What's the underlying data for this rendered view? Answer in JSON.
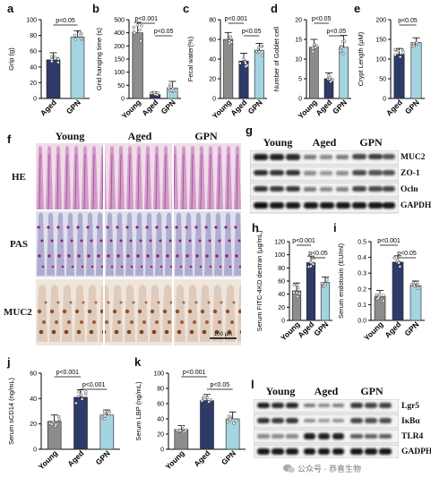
{
  "panels": {
    "a": "a",
    "b": "b",
    "c": "c",
    "d": "d",
    "e": "e",
    "f": "f",
    "g": "g",
    "h": "h",
    "i": "i",
    "j": "j",
    "k": "k",
    "l": "l"
  },
  "colors": {
    "young": "#8c8c8c",
    "aged": "#2e3a67",
    "gpn": "#a3d4e0"
  },
  "histology": {
    "columns": [
      "Young",
      "Aged",
      "GPN"
    ],
    "rows": [
      "HE",
      "PAS",
      "MUC2"
    ],
    "scale_bar": "100 μm"
  },
  "western_g": {
    "groups": [
      "Young",
      "Aged",
      "GPN"
    ],
    "bands": [
      "MUC2",
      "ZO-1",
      "Ocln",
      "GAPDH"
    ]
  },
  "western_l": {
    "groups": [
      "Young",
      "Aged",
      "GPN"
    ],
    "bands": [
      "Lgr5",
      "IκBα",
      "TLR4",
      "GADPH"
    ]
  },
  "watermark": "公众号 · 恭喜生物",
  "chart_data": [
    {
      "id": "a",
      "type": "bar",
      "categories": [
        "Aged",
        "GPN"
      ],
      "values": [
        49,
        78
      ],
      "errors": [
        9,
        8
      ],
      "ylabel": "Grip (g)",
      "ylim": [
        0,
        100
      ],
      "yticks": [
        "0",
        "20",
        "40",
        "60",
        "80",
        "100"
      ],
      "comparisons": [
        {
          "from": 0,
          "to": 1,
          "label": "p<0.05"
        }
      ]
    },
    {
      "id": "b",
      "type": "bar",
      "categories": [
        "Young",
        "Aged",
        "GPN"
      ],
      "values": [
        400,
        15,
        40
      ],
      "errors": [
        40,
        10,
        25
      ],
      "ylabel": "Grid hanging time (s)",
      "ylim": [
        0,
        500
      ],
      "yticks": [
        "0",
        "50",
        "100",
        "150",
        "200",
        "400",
        "500"
      ],
      "comparisons": [
        {
          "from": 0,
          "to": 1,
          "label": "p<0.001"
        },
        {
          "from": 1,
          "to": 2,
          "label": "p<0.05"
        }
      ]
    },
    {
      "id": "c",
      "type": "bar",
      "categories": [
        "Young",
        "Aged",
        "GPN"
      ],
      "values": [
        60,
        38,
        49
      ],
      "errors": [
        7,
        8,
        7
      ],
      "ylabel": "Fecal water(%)",
      "ylim": [
        0,
        80
      ],
      "yticks": [
        "0",
        "20",
        "40",
        "60",
        "80"
      ],
      "comparisons": [
        {
          "from": 0,
          "to": 1,
          "label": "p<0.001"
        },
        {
          "from": 1,
          "to": 2,
          "label": "p<0.05"
        }
      ]
    },
    {
      "id": "d",
      "type": "bar",
      "categories": [
        "Young",
        "Aged",
        "GPN"
      ],
      "values": [
        13,
        5,
        13
      ],
      "errors": [
        2,
        1.5,
        3
      ],
      "ylabel": "Number of Goblet cell",
      "ylim": [
        0,
        20
      ],
      "yticks": [
        "0",
        "5",
        "10",
        "15",
        "20"
      ],
      "comparisons": [
        {
          "from": 0,
          "to": 1,
          "label": "p<0.05"
        },
        {
          "from": 1,
          "to": 2,
          "label": "p<0.05"
        }
      ]
    },
    {
      "id": "e",
      "type": "bar",
      "categories": [
        "Aged",
        "GPN"
      ],
      "values": [
        112,
        142
      ],
      "errors": [
        15,
        12
      ],
      "ylabel": "Crypt Length (μM)",
      "ylim": [
        0,
        200
      ],
      "yticks": [
        "0",
        "50",
        "100",
        "150",
        "200"
      ],
      "comparisons": [
        {
          "from": 0,
          "to": 1,
          "label": "p<0.05"
        }
      ]
    },
    {
      "id": "h",
      "type": "bar",
      "categories": [
        "Young",
        "Aged",
        "GPN"
      ],
      "values": [
        45,
        88,
        58
      ],
      "errors": [
        12,
        10,
        8
      ],
      "ylabel": "Serum FITC-4KD dextran (μg/mL)",
      "ylim": [
        0,
        120
      ],
      "yticks": [
        "0",
        "20",
        "40",
        "60",
        "80",
        "100",
        "120"
      ],
      "comparisons": [
        {
          "from": 0,
          "to": 1,
          "label": "p<0.001"
        },
        {
          "from": 1,
          "to": 2,
          "label": "p<0.05"
        }
      ]
    },
    {
      "id": "i",
      "type": "bar",
      "categories": [
        "Young",
        "Aged",
        "GPN"
      ],
      "values": [
        0.15,
        0.37,
        0.22
      ],
      "errors": [
        0.04,
        0.04,
        0.03
      ],
      "ylabel": "Serum endotoxin (EU/ml)",
      "ylim": [
        0,
        0.5
      ],
      "yticks": [
        "0.0",
        "0.1",
        "0.2",
        "0.3",
        "0.4",
        "0.5"
      ],
      "comparisons": [
        {
          "from": 0,
          "to": 1,
          "label": "p<0.001"
        },
        {
          "from": 1,
          "to": 2,
          "label": "p<0.05"
        }
      ]
    },
    {
      "id": "j",
      "type": "bar",
      "categories": [
        "Young",
        "Aged",
        "GPN"
      ],
      "values": [
        22,
        41,
        27
      ],
      "errors": [
        5,
        6,
        4
      ],
      "ylabel": "Serum sCD14 (ng/mL)",
      "ylim": [
        0,
        60
      ],
      "yticks": [
        "0",
        "20",
        "40",
        "60"
      ],
      "comparisons": [
        {
          "from": 0,
          "to": 1,
          "label": "p<0.001"
        },
        {
          "from": 1,
          "to": 2,
          "label": "p<0.001"
        }
      ]
    },
    {
      "id": "k",
      "type": "bar",
      "categories": [
        "Young",
        "Aged",
        "GPN"
      ],
      "values": [
        26,
        64,
        40
      ],
      "errors": [
        5,
        8,
        9
      ],
      "ylabel": "Serum LBP (ng/mL)",
      "ylim": [
        0,
        100
      ],
      "yticks": [
        "0",
        "20",
        "40",
        "60",
        "80",
        "100"
      ],
      "comparisons": [
        {
          "from": 0,
          "to": 1,
          "label": "p<0.001"
        },
        {
          "from": 1,
          "to": 2,
          "label": "p<0.05"
        }
      ]
    }
  ]
}
